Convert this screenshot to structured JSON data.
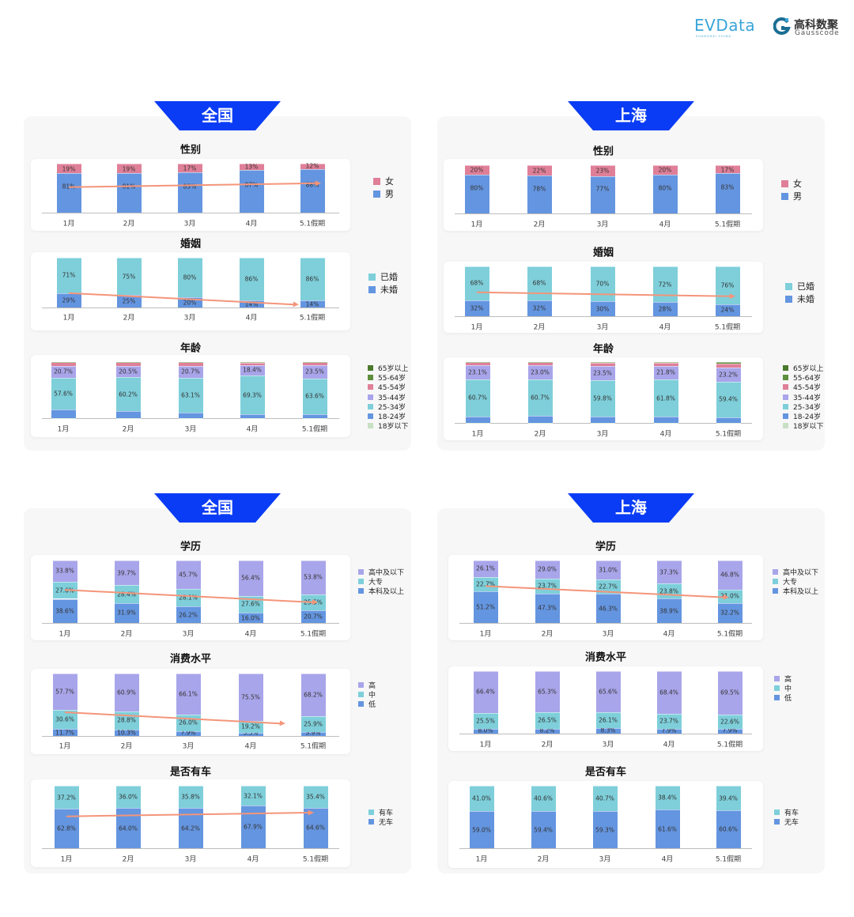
{
  "header": {
    "logo_evdata": "EVData",
    "logo_evdata_sub": "SHANGHAI CHINA",
    "logo_gauss_cn": "高科数聚",
    "logo_gauss_en": "Gausscode"
  },
  "sections": [
    {
      "label": "全国"
    },
    {
      "label": "上海"
    },
    {
      "label": "全国"
    },
    {
      "label": "上海"
    }
  ],
  "colors": {
    "banner": "#0a3cf5",
    "trend_arrow": "#f4957a",
    "blue": "#6495e0",
    "teal": "#7ecfda",
    "pink": "#e07f98",
    "lavender": "#a9a5ea"
  },
  "chart_data": [
    {
      "type": "bar",
      "stacked": true,
      "region": "全国",
      "title": "性别",
      "categories": [
        "1月",
        "2月",
        "3月",
        "4月",
        "5.1假期"
      ],
      "decimals": 0,
      "trend": "up",
      "series": [
        {
          "name": "男",
          "color": "#6495e0",
          "show_labels": true,
          "values": [
            81,
            81,
            83,
            87,
            88
          ]
        },
        {
          "name": "女",
          "color": "#e07f98",
          "show_labels": true,
          "values": [
            19,
            19,
            17,
            13,
            12
          ]
        }
      ]
    },
    {
      "type": "bar",
      "stacked": true,
      "region": "全国",
      "title": "婚姻",
      "categories": [
        "1月",
        "2月",
        "3月",
        "4月",
        "5.1假期"
      ],
      "decimals": 0,
      "trend": "down",
      "series": [
        {
          "name": "未婚",
          "color": "#6495e0",
          "show_labels": true,
          "values": [
            29,
            25,
            20,
            14,
            14
          ]
        },
        {
          "name": "已婚",
          "color": "#7ecfda",
          "show_labels": true,
          "values": [
            71,
            75,
            80,
            86,
            86
          ]
        }
      ]
    },
    {
      "type": "bar",
      "stacked": true,
      "region": "全国",
      "title": "年龄",
      "categories": [
        "1月",
        "2月",
        "3月",
        "4月",
        "5.1假期"
      ],
      "decimals": 1,
      "series": [
        {
          "name": "18岁以下",
          "color": "#c8e0c4",
          "show_labels": false,
          "values": [
            0.3,
            0.3,
            0.2,
            0.3,
            0.3
          ]
        },
        {
          "name": "18-24岁",
          "color": "#6495e0",
          "show_labels": false,
          "values": [
            14.5,
            12.2,
            9.0,
            6.5,
            7.0
          ]
        },
        {
          "name": "25-34岁",
          "color": "#7ecfda",
          "show_labels": true,
          "values": [
            57.6,
            60.2,
            63.1,
            69.3,
            63.6
          ]
        },
        {
          "name": "35-44岁",
          "color": "#a9a5ea",
          "show_labels": true,
          "values": [
            20.7,
            20.5,
            20.7,
            18.4,
            23.5
          ]
        },
        {
          "name": "45-54岁",
          "color": "#e07f98",
          "show_labels": false,
          "values": [
            6.3,
            6.3,
            6.5,
            4.5,
            5.0
          ]
        },
        {
          "name": "55-64岁",
          "color": "#5e8f3c",
          "show_labels": false,
          "values": [
            0.6,
            0.5,
            0.5,
            1.0,
            0.6
          ]
        },
        {
          "name": "65岁以上",
          "color": "#4b7a2d",
          "show_labels": false,
          "values": [
            0,
            0,
            0,
            0,
            0
          ]
        }
      ]
    },
    {
      "type": "bar",
      "stacked": true,
      "region": "上海",
      "title": "性别",
      "categories": [
        "1月",
        "2月",
        "3月",
        "4月",
        "5.1假期"
      ],
      "decimals": 0,
      "series": [
        {
          "name": "男",
          "color": "#6495e0",
          "show_labels": true,
          "values": [
            80,
            78,
            77,
            80,
            83
          ]
        },
        {
          "name": "女",
          "color": "#e07f98",
          "show_labels": true,
          "values": [
            20,
            22,
            23,
            20,
            17
          ]
        }
      ]
    },
    {
      "type": "bar",
      "stacked": true,
      "region": "上海",
      "title": "婚姻",
      "categories": [
        "1月",
        "2月",
        "3月",
        "4月",
        "5.1假期"
      ],
      "decimals": 0,
      "trend": "down",
      "series": [
        {
          "name": "未婚",
          "color": "#6495e0",
          "show_labels": true,
          "values": [
            32,
            32,
            30,
            28,
            24
          ]
        },
        {
          "name": "已婚",
          "color": "#7ecfda",
          "show_labels": true,
          "values": [
            68,
            68,
            70,
            72,
            76
          ]
        }
      ]
    },
    {
      "type": "bar",
      "stacked": true,
      "region": "上海",
      "title": "年龄",
      "categories": [
        "1月",
        "2月",
        "3月",
        "4月",
        "5.1假期"
      ],
      "decimals": 1,
      "series": [
        {
          "name": "18岁以下",
          "color": "#c8e0c4",
          "show_labels": false,
          "values": [
            0.2,
            0.2,
            0.3,
            0.3,
            0.2
          ]
        },
        {
          "name": "18-24岁",
          "color": "#6495e0",
          "show_labels": false,
          "values": [
            10.4,
            11.0,
            10.0,
            9.5,
            8.5
          ]
        },
        {
          "name": "25-34岁",
          "color": "#7ecfda",
          "show_labels": true,
          "values": [
            60.7,
            60.7,
            59.8,
            61.8,
            59.4
          ]
        },
        {
          "name": "35-44岁",
          "color": "#a9a5ea",
          "show_labels": true,
          "values": [
            23.1,
            23.0,
            23.5,
            21.8,
            23.2
          ]
        },
        {
          "name": "45-54岁",
          "color": "#e07f98",
          "show_labels": false,
          "values": [
            5.0,
            4.5,
            5.5,
            5.5,
            6.0
          ]
        },
        {
          "name": "55-64岁",
          "color": "#5e8f3c",
          "show_labels": false,
          "values": [
            0.6,
            0.6,
            0.9,
            1.1,
            2.2
          ]
        },
        {
          "name": "65岁以上",
          "color": "#4b7a2d",
          "show_labels": false,
          "values": [
            0,
            0,
            0,
            0,
            0.5
          ]
        }
      ]
    },
    {
      "type": "bar",
      "stacked": true,
      "region": "全国",
      "title": "学历",
      "categories": [
        "1月",
        "2月",
        "3月",
        "4月",
        "5.1假期"
      ],
      "decimals": 1,
      "trend": "down",
      "series": [
        {
          "name": "本科及以上",
          "color": "#6495e0",
          "show_labels": true,
          "values": [
            38.6,
            31.9,
            26.2,
            16.0,
            20.7
          ]
        },
        {
          "name": "大专",
          "color": "#7ecfda",
          "show_labels": true,
          "values": [
            27.6,
            28.4,
            28.1,
            27.6,
            25.5
          ]
        },
        {
          "name": "高中及以下",
          "color": "#a9a5ea",
          "show_labels": true,
          "values": [
            33.8,
            39.7,
            45.7,
            56.4,
            53.8
          ]
        }
      ]
    },
    {
      "type": "bar",
      "stacked": true,
      "region": "全国",
      "title": "消费水平",
      "categories": [
        "1月",
        "2月",
        "3月",
        "4月",
        "5.1假期"
      ],
      "decimals": 1,
      "trend": "down",
      "series": [
        {
          "name": "低",
          "color": "#6495e0",
          "show_labels": true,
          "values": [
            11.7,
            10.3,
            7.9,
            5.3,
            5.9
          ]
        },
        {
          "name": "中",
          "color": "#7ecfda",
          "show_labels": true,
          "values": [
            30.6,
            28.8,
            26.0,
            19.2,
            25.9
          ]
        },
        {
          "name": "高",
          "color": "#a9a5ea",
          "show_labels": true,
          "values": [
            57.7,
            60.9,
            66.1,
            75.5,
            68.2
          ]
        }
      ]
    },
    {
      "type": "bar",
      "stacked": true,
      "region": "全国",
      "title": "是否有车",
      "categories": [
        "1月",
        "2月",
        "3月",
        "4月",
        "5.1假期"
      ],
      "decimals": 1,
      "trend": "up",
      "series": [
        {
          "name": "无车",
          "color": "#6495e0",
          "show_labels": true,
          "values": [
            62.8,
            64.0,
            64.2,
            67.9,
            64.6
          ]
        },
        {
          "name": "有车",
          "color": "#7ecfda",
          "show_labels": true,
          "values": [
            37.2,
            36.0,
            35.8,
            32.1,
            35.4
          ]
        }
      ]
    },
    {
      "type": "bar",
      "stacked": true,
      "region": "上海",
      "title": "学历",
      "categories": [
        "1月",
        "2月",
        "3月",
        "4月",
        "5.1假期"
      ],
      "decimals": 1,
      "trend": "down",
      "series": [
        {
          "name": "本科及以上",
          "color": "#6495e0",
          "show_labels": true,
          "values": [
            51.2,
            47.3,
            46.3,
            38.9,
            32.2
          ]
        },
        {
          "name": "大专",
          "color": "#7ecfda",
          "show_labels": true,
          "values": [
            22.7,
            23.7,
            22.7,
            23.8,
            21.0
          ]
        },
        {
          "name": "高中及以下",
          "color": "#a9a5ea",
          "show_labels": true,
          "values": [
            26.1,
            29.0,
            31.0,
            37.3,
            46.8
          ]
        }
      ]
    },
    {
      "type": "bar",
      "stacked": true,
      "region": "上海",
      "title": "消费水平",
      "categories": [
        "1月",
        "2月",
        "3月",
        "4月",
        "5.1假期"
      ],
      "decimals": 1,
      "series": [
        {
          "name": "低",
          "color": "#6495e0",
          "show_labels": true,
          "values": [
            8.0,
            8.2,
            8.3,
            7.9,
            7.9
          ]
        },
        {
          "name": "中",
          "color": "#7ecfda",
          "show_labels": true,
          "values": [
            25.5,
            26.5,
            26.1,
            23.7,
            22.6
          ]
        },
        {
          "name": "高",
          "color": "#a9a5ea",
          "show_labels": true,
          "values": [
            66.4,
            65.3,
            65.6,
            68.4,
            69.5
          ]
        }
      ]
    },
    {
      "type": "bar",
      "stacked": true,
      "region": "上海",
      "title": "是否有车",
      "categories": [
        "1月",
        "2月",
        "3月",
        "4月",
        "5.1假期"
      ],
      "decimals": 1,
      "series": [
        {
          "name": "无车",
          "color": "#6495e0",
          "show_labels": true,
          "values": [
            59.0,
            59.4,
            59.3,
            61.6,
            60.6
          ]
        },
        {
          "name": "有车",
          "color": "#7ecfda",
          "show_labels": true,
          "values": [
            41.0,
            40.6,
            40.7,
            38.4,
            39.4
          ]
        }
      ]
    }
  ]
}
